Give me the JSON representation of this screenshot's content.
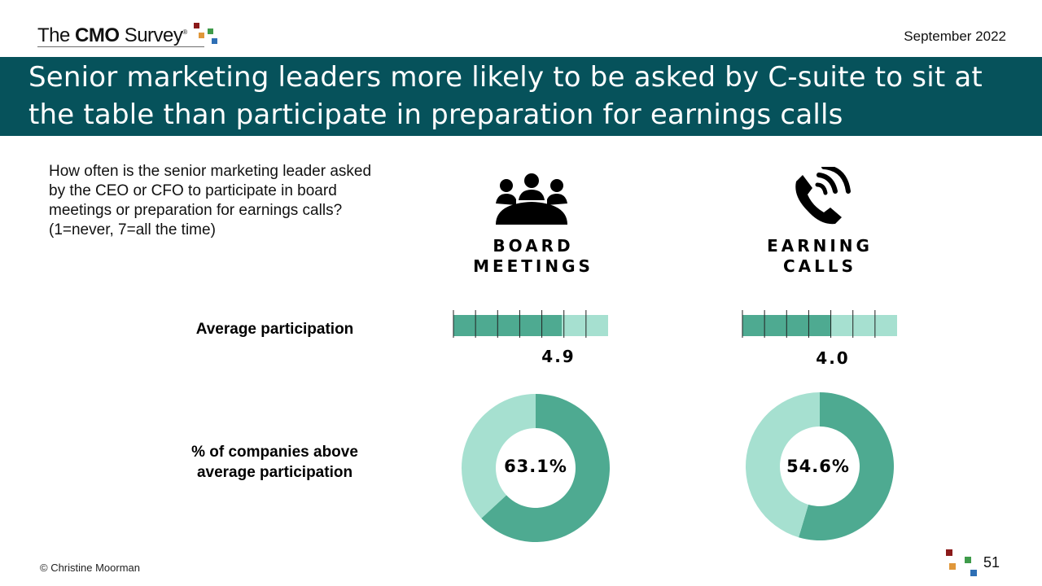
{
  "header": {
    "logo": {
      "prefix": "The ",
      "bold": "CMO",
      "suffix": " Survey",
      "registered": "®",
      "square_colors": [
        "#8b1a1a",
        "#e0973a",
        "#3f9b4a",
        "#2e6fb5"
      ]
    },
    "date": "September 2022"
  },
  "title": "Senior marketing leaders more likely to be asked by C-suite to sit at the table than participate in preparation for earnings calls",
  "question": "How often is the senior marketing leader asked by the CEO or CFO to participate in board meetings or preparation for earnings calls? (1=never, 7=all the time)",
  "row_labels": {
    "average": "Average participation",
    "percent_line1": "% of companies above",
    "percent_line2": "average participation"
  },
  "colors": {
    "primary": "#4eaa91",
    "secondary": "#a6e0d0",
    "title_band": "#06525b"
  },
  "chart_data": [
    {
      "type": "bar",
      "category_line1": "BOARD",
      "category_line2": "MEETINGS",
      "icon": "meeting-people-icon",
      "values": [
        4.9
      ],
      "value_label": "4.9",
      "xlim": [
        0,
        7
      ]
    },
    {
      "type": "bar",
      "category_line1": "EARNING",
      "category_line2": "CALLS",
      "icon": "phone-icon",
      "values": [
        4.0
      ],
      "value_label": "4.0",
      "xlim": [
        0,
        7
      ]
    },
    {
      "type": "pie",
      "category": "BOARD MEETINGS",
      "values": [
        63.1,
        36.9
      ],
      "center_label": "63.1%"
    },
    {
      "type": "pie",
      "category": "EARNING CALLS",
      "values": [
        54.6,
        45.4
      ],
      "center_label": "54.6%"
    }
  ],
  "footer": {
    "copyright": "© Christine Moorman",
    "page_number": "51"
  }
}
